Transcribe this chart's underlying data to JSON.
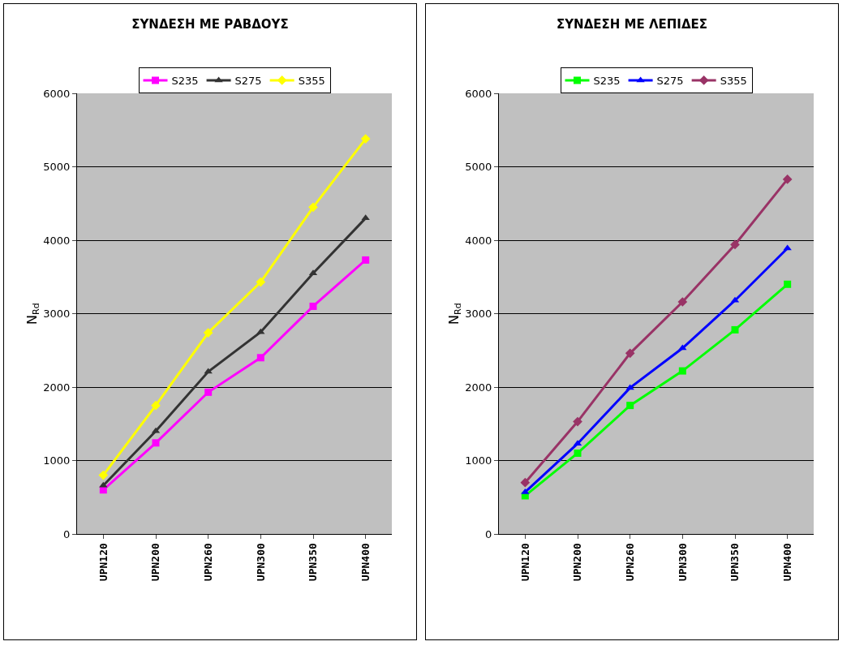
{
  "chart_data": [
    {
      "type": "line",
      "title": "ΣΥΝΔΕΣΗ ΜΕ ΡΑΒΔΟΥΣ",
      "ylabel": "N$_{Rd}$",
      "categories": [
        "UPN120",
        "UPN200",
        "UPN260",
        "UPN300",
        "UPN350",
        "UPN400"
      ],
      "ylim": [
        0,
        6000
      ],
      "yticks": [
        0,
        1000,
        2000,
        3000,
        4000,
        5000,
        6000
      ],
      "grid": "y",
      "legend": "top",
      "line_style": "solid",
      "series": [
        {
          "name": "S235",
          "color": "#ff00ff",
          "marker": "square",
          "values": [
            600,
            1240,
            1930,
            2400,
            3100,
            3730
          ]
        },
        {
          "name": "S275",
          "color": "#333333",
          "marker": "triangle",
          "values": [
            660,
            1400,
            2210,
            2750,
            3550,
            4300
          ]
        },
        {
          "name": "S355",
          "color": "#ffff00",
          "marker": "diamond",
          "values": [
            800,
            1750,
            2740,
            3430,
            4450,
            5380
          ]
        }
      ]
    },
    {
      "type": "line",
      "title": "ΣΥΝΔΕΣΗ ΜΕ ΛΕΠΙΔΕΣ",
      "ylabel": "N$_{Rd}$",
      "categories": [
        "UPN120",
        "UPN200",
        "UPN260",
        "UPN300",
        "UPN350",
        "UPN400"
      ],
      "ylim": [
        0,
        6000
      ],
      "yticks": [
        0,
        1000,
        2000,
        3000,
        4000,
        5000,
        6000
      ],
      "grid": "y",
      "legend": "top",
      "line_style": "solid",
      "series": [
        {
          "name": "S235",
          "color": "#00ff00",
          "marker": "square",
          "values": [
            520,
            1100,
            1750,
            2220,
            2780,
            3400
          ]
        },
        {
          "name": "S275",
          "color": "#0000ff",
          "marker": "triangle",
          "values": [
            570,
            1230,
            1990,
            2530,
            3180,
            3890
          ]
        },
        {
          "name": "S355",
          "color": "#993366",
          "marker": "diamond",
          "values": [
            700,
            1530,
            2460,
            3160,
            3940,
            4830
          ]
        }
      ]
    }
  ]
}
